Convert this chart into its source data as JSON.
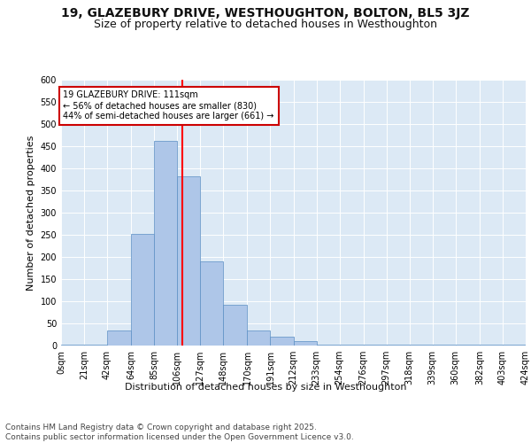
{
  "title_line1": "19, GLAZEBURY DRIVE, WESTHOUGHTON, BOLTON, BL5 3JZ",
  "title_line2": "Size of property relative to detached houses in Westhoughton",
  "xlabel": "Distribution of detached houses by size in Westhoughton",
  "ylabel": "Number of detached properties",
  "bar_left_edges": [
    0,
    21,
    42,
    64,
    85,
    106,
    127,
    148,
    170,
    191,
    212,
    233,
    254,
    276,
    297,
    318,
    339,
    360,
    382,
    403
  ],
  "bar_widths": [
    21,
    21,
    22,
    21,
    21,
    21,
    21,
    22,
    21,
    21,
    21,
    21,
    22,
    21,
    21,
    21,
    21,
    22,
    21,
    21
  ],
  "bar_heights": [
    2,
    2,
    35,
    253,
    462,
    383,
    190,
    93,
    35,
    20,
    10,
    3,
    3,
    2,
    2,
    3,
    2,
    2,
    2,
    2
  ],
  "bar_color": "#aec6e8",
  "bar_edge_color": "#5a8fc4",
  "tick_labels": [
    "0sqm",
    "21sqm",
    "42sqm",
    "64sqm",
    "85sqm",
    "106sqm",
    "127sqm",
    "148sqm",
    "170sqm",
    "191sqm",
    "212sqm",
    "233sqm",
    "254sqm",
    "276sqm",
    "297sqm",
    "318sqm",
    "339sqm",
    "360sqm",
    "382sqm",
    "403sqm",
    "424sqm"
  ],
  "property_size": 111,
  "red_line_x": 111,
  "annotation_title": "19 GLAZEBURY DRIVE: 111sqm",
  "annotation_line2": "← 56% of detached houses are smaller (830)",
  "annotation_line3": "44% of semi-detached houses are larger (661) →",
  "annotation_box_color": "#ffffff",
  "annotation_border_color": "#cc0000",
  "ylim": [
    0,
    600
  ],
  "yticks": [
    0,
    50,
    100,
    150,
    200,
    250,
    300,
    350,
    400,
    450,
    500,
    550,
    600
  ],
  "plot_bg_color": "#dce9f5",
  "footer_line1": "Contains HM Land Registry data © Crown copyright and database right 2025.",
  "footer_line2": "Contains public sector information licensed under the Open Government Licence v3.0.",
  "title_fontsize": 10,
  "subtitle_fontsize": 9,
  "axis_label_fontsize": 8,
  "tick_fontsize": 7,
  "annotation_fontsize": 7,
  "footer_fontsize": 6.5
}
